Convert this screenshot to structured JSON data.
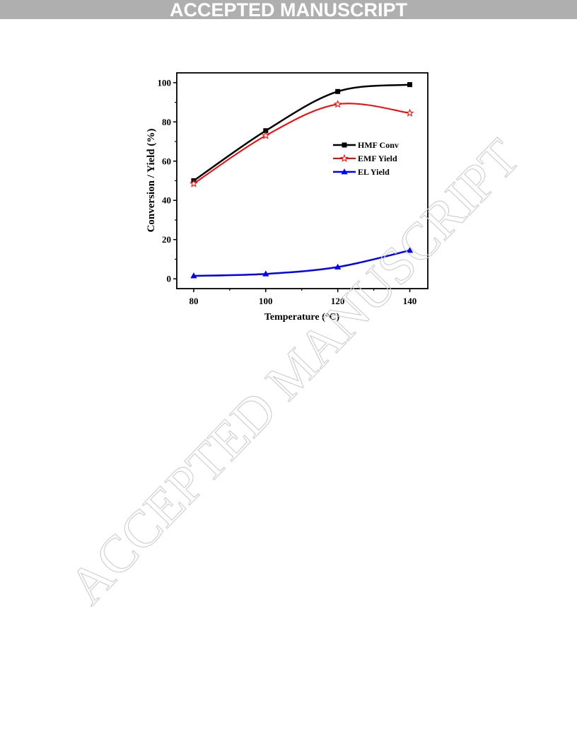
{
  "banner": {
    "text": "ACCEPTED MANUSCRIPT",
    "bg": "#afafaf",
    "color": "#ffffff"
  },
  "watermark": {
    "text": "ACCEPTED MANUSCRIPT",
    "color": "#cdcdcd"
  },
  "chart_data": {
    "type": "line",
    "title": "",
    "xlabel": "Temperature (°C)",
    "ylabel": "Conversion / Yield (%)",
    "x": [
      80,
      100,
      120,
      140
    ],
    "xticks": [
      "80",
      "100",
      "120",
      "140"
    ],
    "yticks": [
      "0",
      "20",
      "40",
      "60",
      "80",
      "100"
    ],
    "xlim": [
      75.3,
      145
    ],
    "ylim": [
      -5,
      105
    ],
    "grid": false,
    "legend_position": "center-right",
    "series": [
      {
        "name": "HMF Conv",
        "values": [
          50,
          75.5,
          95.5,
          99
        ],
        "color": "#000000",
        "marker": "square"
      },
      {
        "name": "EMF Yield",
        "values": [
          48.5,
          73,
          89,
          84.5
        ],
        "color": "#ff0000",
        "marker": "open-star"
      },
      {
        "name": "EL Yield",
        "values": [
          1.5,
          2.5,
          6,
          14.5
        ],
        "color": "#0000ff",
        "marker": "triangle"
      }
    ]
  }
}
